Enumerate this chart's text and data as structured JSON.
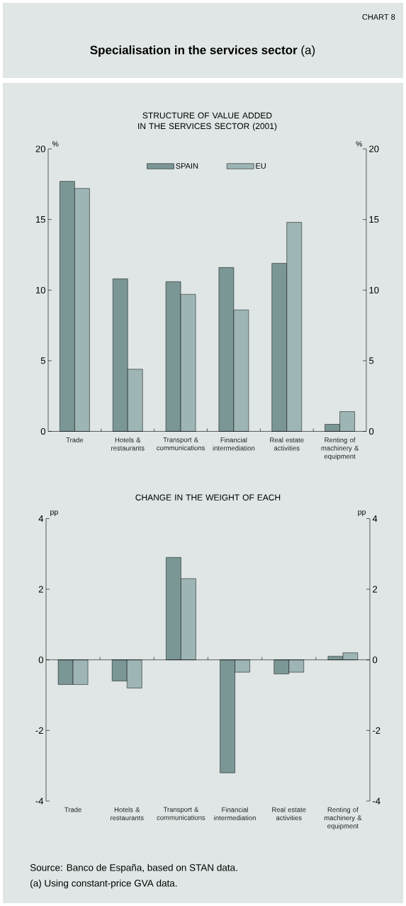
{
  "chart_data": [
    {
      "type": "bar",
      "title": "STRUCTURE OF VALUE ADDED IN THE SERVICES SECTOR (2001)",
      "ylabel": "%",
      "y2label": "%",
      "annotations": [
        "CHART 8",
        "**Specialisation in the services sector** (a)"
      ],
      "categories": [
        "Trade",
        "Hotels & restaurants",
        "Transport & communications",
        "Financial intermediation",
        "Real estate activities",
        "Renting of machinery & equipment"
      ],
      "series": [
        {
          "name": "SPAIN",
          "color": "#7a9796",
          "values": [
            17.7,
            10.8,
            10.6,
            11.6,
            11.9,
            0.5
          ]
        },
        {
          "name": "EU",
          "color": "#9db5b4",
          "values": [
            17.2,
            4.4,
            9.7,
            8.6,
            14.8,
            1.4
          ]
        }
      ],
      "ylim": [
        0,
        20
      ],
      "yticks": [
        0,
        5,
        10,
        15,
        20
      ],
      "y2lim": [
        0,
        20
      ],
      "y2ticks": [
        0,
        5,
        10,
        15,
        20
      ],
      "legend": "top"
    },
    {
      "type": "bar",
      "title": "CHANGE IN THE WEIGHT OF EACH",
      "ylabel": "pp",
      "y2label": "pp",
      "annotations": [
        "Source: Banco de España, based on STAN data.",
        "(a) Using constant-price GVA data."
      ],
      "categories": [
        "Trade",
        "Hotels & restaurants",
        "Transport & communications",
        "Financial intermediation",
        "Real estate activities",
        "Renting of machinery & equipment"
      ],
      "series": [
        {
          "color": "#7a9796",
          "values": [
            -0.7,
            -0.6,
            2.9,
            -3.2,
            -0.4,
            0.1
          ]
        },
        {
          "color": "#9db5b4",
          "values": [
            -0.7,
            -0.8,
            2.3,
            -0.35,
            -0.35,
            0.2
          ]
        }
      ],
      "ylim": [
        -4,
        4
      ],
      "yticks": [
        -4,
        -2,
        0,
        2,
        4
      ],
      "y2lim": [
        -4,
        4
      ],
      "y2ticks": [
        -4,
        -2,
        0,
        2,
        4
      ]
    }
  ]
}
